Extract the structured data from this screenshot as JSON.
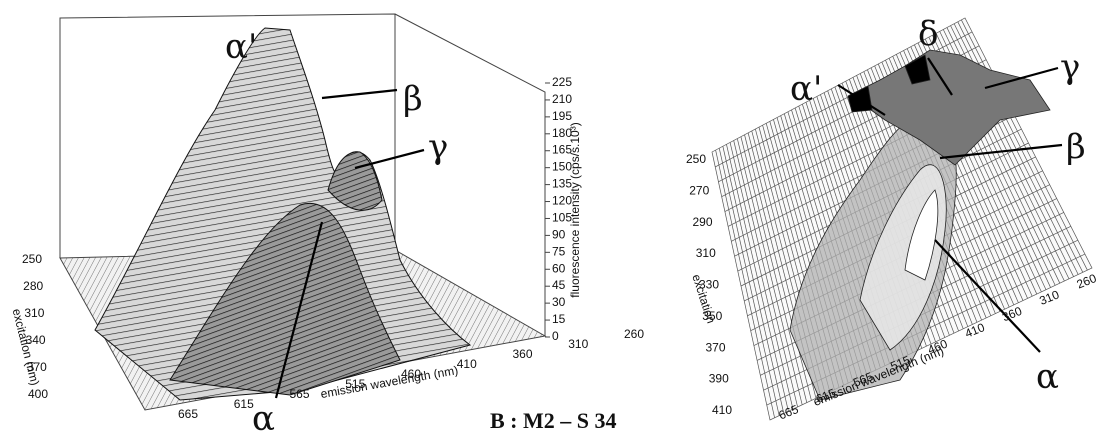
{
  "caption": "B : M2 – S 34",
  "left_plot": {
    "z_axis_label": "fluorescence intensity (cps/s.10³)",
    "z_ticks": [
      0,
      15,
      30,
      45,
      60,
      75,
      90,
      105,
      120,
      135,
      150,
      165,
      180,
      195,
      210,
      225
    ],
    "y_axis_label": "excitation (nm)",
    "y_ticks": [
      250,
      280,
      310,
      340,
      370,
      400
    ],
    "x_axis_label": "emission wavelength (nm)",
    "x_ticks": [
      665,
      615,
      565,
      515,
      460,
      410,
      360,
      310,
      260
    ],
    "peak_labels": [
      "α'",
      "β",
      "γ",
      "α"
    ]
  },
  "right_plot": {
    "y_axis_label": "excitation",
    "y_ticks": [
      250,
      270,
      290,
      310,
      330,
      350,
      370,
      390,
      410
    ],
    "x_axis_label": "emission wavelength (nm)",
    "x_ticks": [
      665,
      615,
      565,
      515,
      460,
      410,
      360,
      310,
      260
    ],
    "peak_labels": [
      "α'",
      "δ",
      "γ",
      "β",
      "α"
    ]
  }
}
